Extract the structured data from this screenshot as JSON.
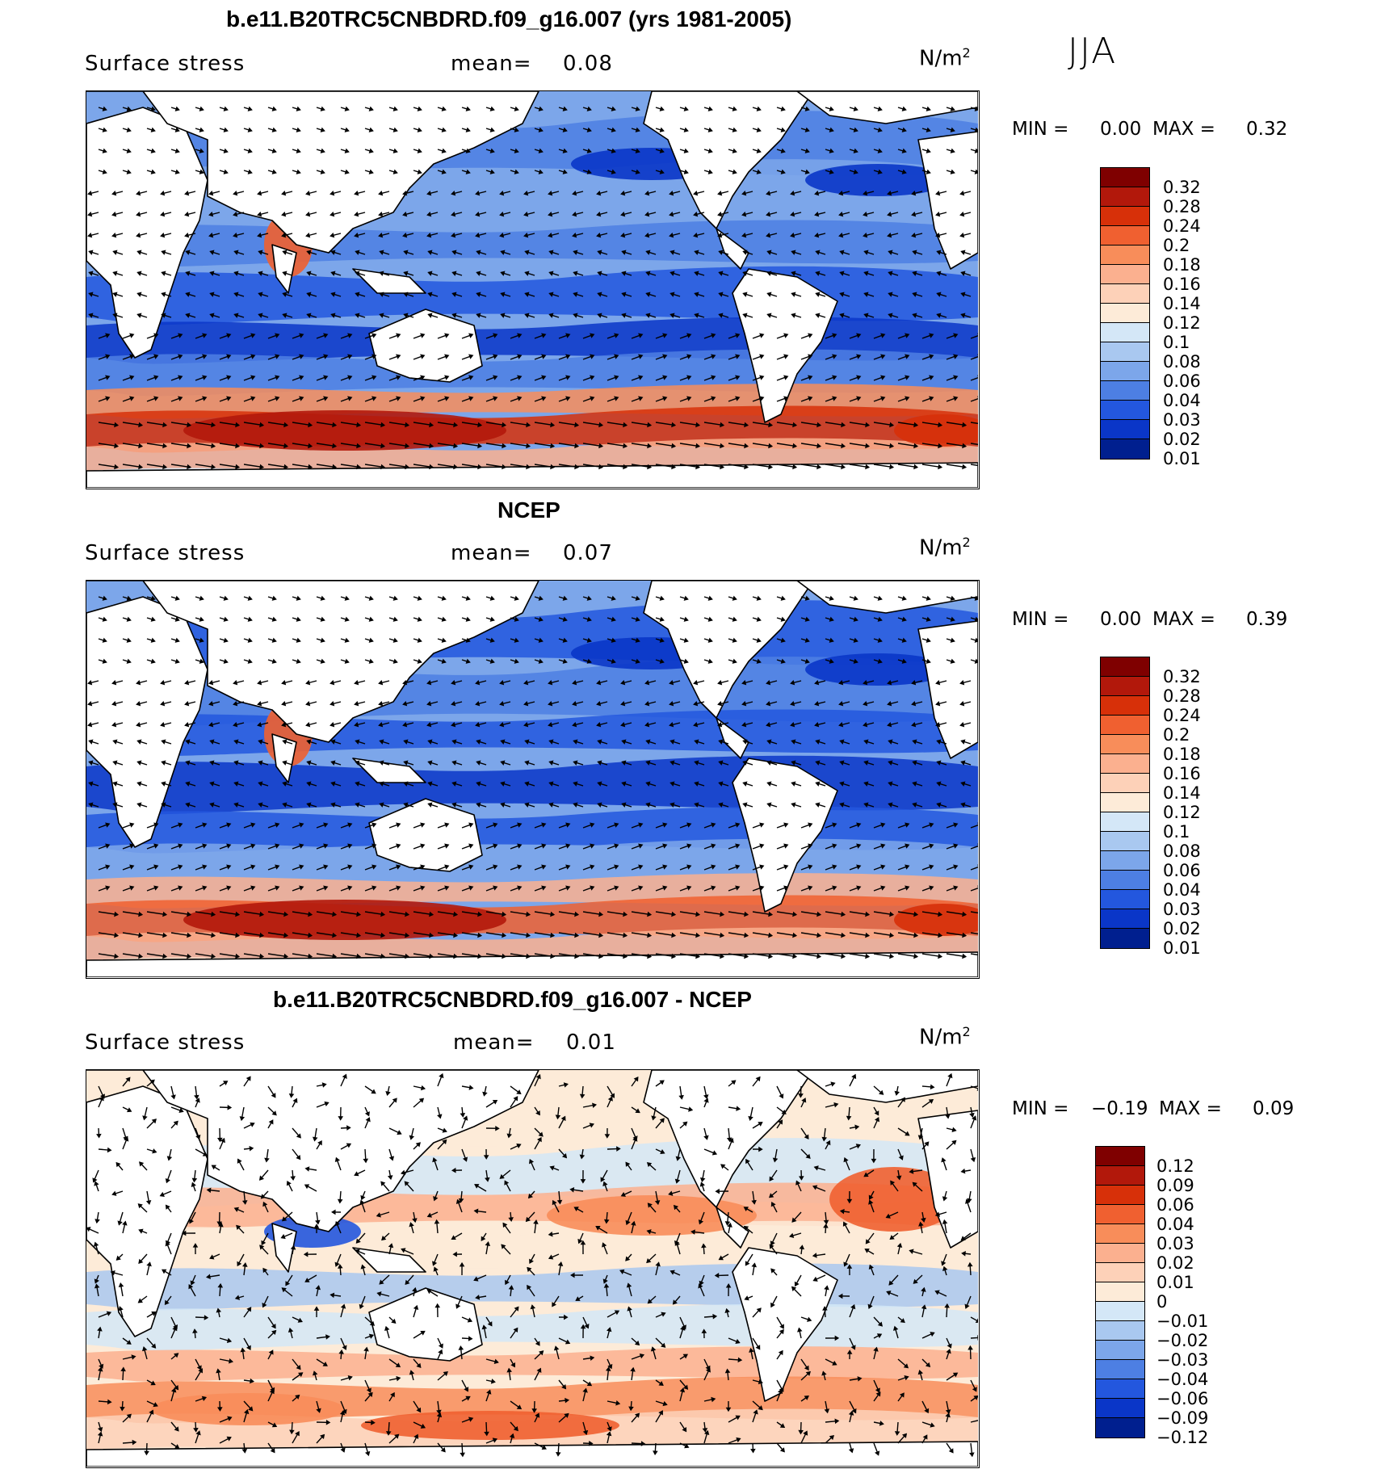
{
  "season": "JJA",
  "units": {
    "base": "N/m",
    "sup": "2"
  },
  "panels": [
    {
      "title": "b.e11.B20TRC5CNBDRD.f09_g16.007 (yrs 1981-2005)",
      "variable": "Surface stress",
      "mean_label": "mean=",
      "mean_value": "0.08",
      "min_label": "MIN =",
      "min_value": "0.00",
      "max_label": "MAX =",
      "max_value": "0.32",
      "colorbar_labels": [
        "0.32",
        "0.28",
        "0.24",
        "0.2",
        "0.18",
        "0.16",
        "0.14",
        "0.12",
        "0.1",
        "0.08",
        "0.06",
        "0.04",
        "0.03",
        "0.02",
        "0.01"
      ],
      "colorbar_colors": [
        "#7f0000",
        "#b2180b",
        "#d73009",
        "#f06030",
        "#f88d5a",
        "#fbb08f",
        "#fdd1b8",
        "#fdebd8",
        "#d4e7f7",
        "#a9c8f0",
        "#7ca6ea",
        "#4d7fe3",
        "#2357de",
        "#0a36c8",
        "#001f8f"
      ],
      "field": "model"
    },
    {
      "title": "NCEP",
      "variable": "Surface stress",
      "mean_label": "mean=",
      "mean_value": "0.07",
      "min_label": "MIN =",
      "min_value": "0.00",
      "max_label": "MAX =",
      "max_value": "0.39",
      "colorbar_labels": [
        "0.32",
        "0.28",
        "0.24",
        "0.2",
        "0.18",
        "0.16",
        "0.14",
        "0.12",
        "0.1",
        "0.08",
        "0.06",
        "0.04",
        "0.03",
        "0.02",
        "0.01"
      ],
      "colorbar_colors": [
        "#7f0000",
        "#b2180b",
        "#d73009",
        "#f06030",
        "#f88d5a",
        "#fbb08f",
        "#fdd1b8",
        "#fdebd8",
        "#d4e7f7",
        "#a9c8f0",
        "#7ca6ea",
        "#4d7fe3",
        "#2357de",
        "#0a36c8",
        "#001f8f"
      ],
      "field": "obs"
    },
    {
      "title": "b.e11.B20TRC5CNBDRD.f09_g16.007 - NCEP",
      "variable": "Surface stress",
      "mean_label": "mean=",
      "mean_value": "0.01",
      "min_label": "MIN =",
      "min_value": "−0.19",
      "max_label": "MAX =",
      "max_value": "0.09",
      "colorbar_labels": [
        "0.12",
        "0.09",
        "0.06",
        "0.04",
        "0.03",
        "0.02",
        "0.01",
        "0",
        "−0.01",
        "−0.02",
        "−0.03",
        "−0.04",
        "−0.06",
        "−0.09",
        "−0.12"
      ],
      "colorbar_colors": [
        "#7f0000",
        "#b2180b",
        "#d73009",
        "#f06030",
        "#f88d5a",
        "#fbb08f",
        "#fdd1b8",
        "#fdebd8",
        "#d4e7f7",
        "#a9c8f0",
        "#7ca6ea",
        "#4d7fe3",
        "#2357de",
        "#0a36c8",
        "#001f8f"
      ],
      "field": "diff"
    }
  ],
  "chart_data": [
    {
      "type": "heatmap",
      "title": "b.e11.B20TRC5CNBDRD.f09_g16.007 (yrs 1981-2005)",
      "variable": "Surface stress",
      "units": "N/m2",
      "season": "JJA",
      "mean": 0.08,
      "min": 0.0,
      "max": 0.32,
      "contour_levels": [
        0.01,
        0.02,
        0.03,
        0.04,
        0.06,
        0.08,
        0.1,
        0.12,
        0.14,
        0.16,
        0.18,
        0.2,
        0.24,
        0.28,
        0.32
      ],
      "overlay": "stress vectors"
    },
    {
      "type": "heatmap",
      "title": "NCEP",
      "variable": "Surface stress",
      "units": "N/m2",
      "season": "JJA",
      "mean": 0.07,
      "min": 0.0,
      "max": 0.39,
      "contour_levels": [
        0.01,
        0.02,
        0.03,
        0.04,
        0.06,
        0.08,
        0.1,
        0.12,
        0.14,
        0.16,
        0.18,
        0.2,
        0.24,
        0.28,
        0.32
      ],
      "overlay": "stress vectors"
    },
    {
      "type": "heatmap",
      "title": "b.e11.B20TRC5CNBDRD.f09_g16.007 - NCEP",
      "variable": "Surface stress",
      "units": "N/m2",
      "season": "JJA",
      "mean": 0.01,
      "min": -0.19,
      "max": 0.09,
      "contour_levels": [
        -0.12,
        -0.09,
        -0.06,
        -0.04,
        -0.03,
        -0.02,
        -0.01,
        0,
        0.01,
        0.02,
        0.03,
        0.04,
        0.06,
        0.09,
        0.12
      ],
      "overlay": "stress difference vectors"
    }
  ]
}
